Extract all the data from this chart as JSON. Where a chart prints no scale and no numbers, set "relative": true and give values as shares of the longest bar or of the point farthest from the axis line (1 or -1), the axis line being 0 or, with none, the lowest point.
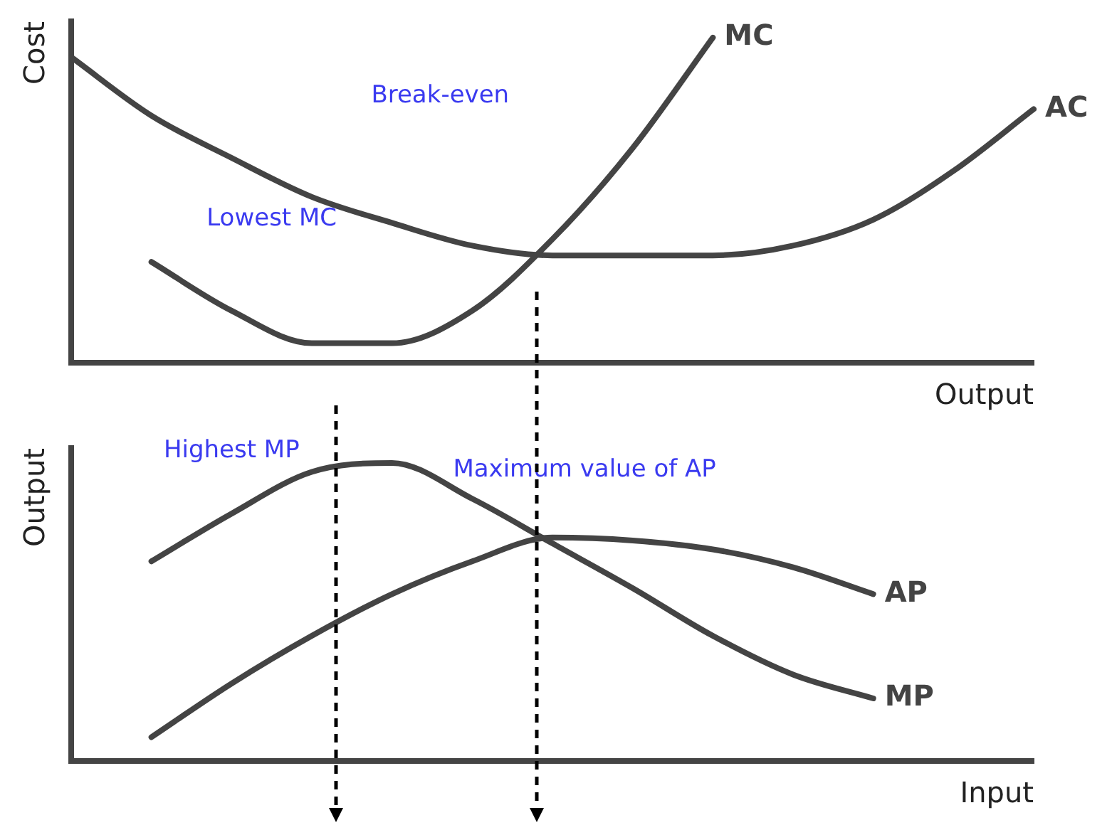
{
  "chart_data": [
    {
      "type": "line",
      "ylabel": "Cost",
      "xlabel": "Output",
      "relative": true,
      "categories": [
        null,
        null,
        null,
        null,
        null,
        null,
        null,
        null,
        null,
        null,
        null,
        null,
        null
      ],
      "series": [
        {
          "name": "MC",
          "color": "#444444",
          "values": [
            null,
            0.31,
            0.16,
            0.06,
            0.06,
            0.16,
            0.38,
            0.66,
            1,
            null,
            null,
            null,
            null
          ]
        },
        {
          "name": "AC",
          "color": "#444444",
          "values": [
            0.94,
            0.76,
            0.63,
            0.51,
            0.43,
            0.36,
            0.33,
            0.33,
            0.33,
            0.36,
            0.44,
            0.59,
            0.78
          ]
        }
      ],
      "annotations": [
        "Break-even",
        "Lowest MC"
      ]
    },
    {
      "type": "line",
      "ylabel": "Output",
      "xlabel": "Input",
      "relative": true,
      "categories": [
        null,
        null,
        null,
        null,
        null,
        null,
        null,
        null,
        null,
        null,
        null,
        null,
        null
      ],
      "series": [
        {
          "name": "AP",
          "color": "#444444",
          "values": [
            null,
            0.08,
            0.26,
            0.42,
            0.56,
            0.67,
            0.75,
            0.74,
            0.71,
            0.65,
            0.56,
            null,
            null
          ]
        },
        {
          "name": "MP",
          "color": "#444444",
          "values": [
            null,
            0.67,
            0.83,
            0.97,
            1,
            0.88,
            0.73,
            0.58,
            0.42,
            0.29,
            0.21,
            null,
            null
          ]
        }
      ],
      "annotations": [
        "Highest MP",
        "Maximum value of AP"
      ]
    }
  ]
}
